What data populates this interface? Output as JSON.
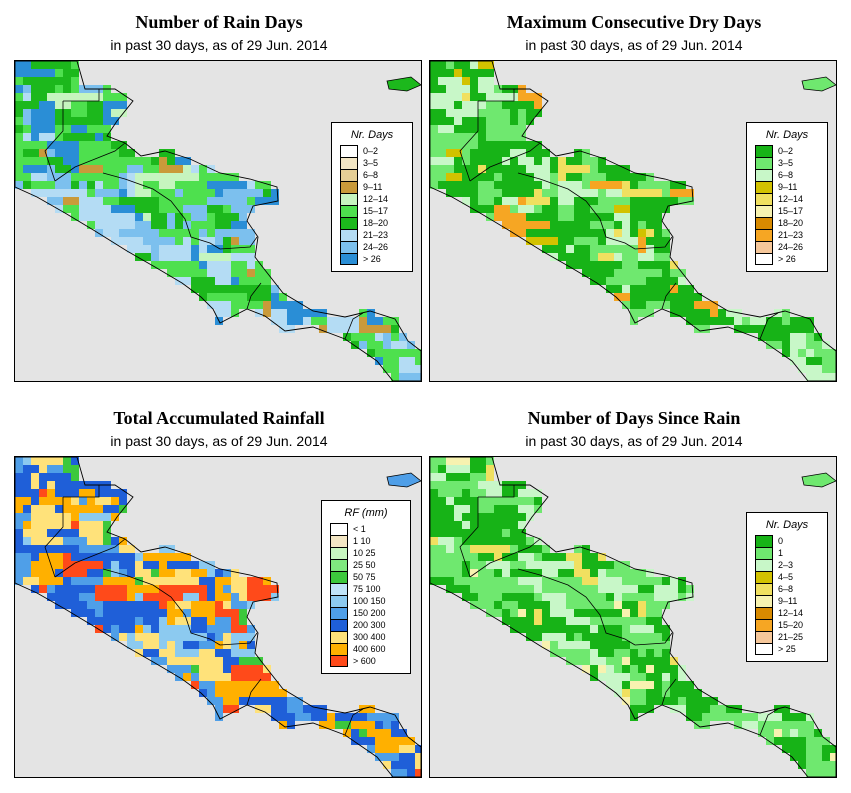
{
  "panels": [
    {
      "id": "rain-days",
      "title": "Number of Rain Days",
      "subtitle": "in past 30 days, as of  29 Jun. 2014",
      "legend": {
        "title": "Nr. Days",
        "items": [
          {
            "label": "0–2",
            "color": "#ffffff"
          },
          {
            "label": "3–5",
            "color": "#f3e6c4"
          },
          {
            "label": "6–8",
            "color": "#e6cf96"
          },
          {
            "label": "9–11",
            "color": "#c99a3a"
          },
          {
            "label": "12–14",
            "color": "#c6f5bf"
          },
          {
            "label": "15–17",
            "color": "#4ee04e"
          },
          {
            "label": "18–20",
            "color": "#1cb81c"
          },
          {
            "label": "21–23",
            "color": "#b4dcf4"
          },
          {
            "label": "24–26",
            "color": "#7cc0ee"
          },
          {
            "label": "> 26",
            "color": "#2a8ed6"
          }
        ]
      },
      "palette": [
        "#4ee04e",
        "#1cb81c",
        "#b4dcf4",
        "#7cc0ee",
        "#2a8ed6",
        "#c99a3a",
        "#c6f5bf"
      ],
      "weights": [
        30,
        22,
        18,
        14,
        10,
        3,
        3
      ]
    },
    {
      "id": "max-dry-days",
      "title": "Maximum Consecutive Dry Days",
      "subtitle": "in past 30 days, as of  29 Jun. 2014",
      "legend": {
        "title": "Nr. Days",
        "items": [
          {
            "label": "0–2",
            "color": "#17b317"
          },
          {
            "label": "3–5",
            "color": "#6fe86f"
          },
          {
            "label": "6–8",
            "color": "#c8f7c8"
          },
          {
            "label": "9–11",
            "color": "#d2c200"
          },
          {
            "label": "12–14",
            "color": "#f0e060"
          },
          {
            "label": "15–17",
            "color": "#f7f2b0"
          },
          {
            "label": "18–20",
            "color": "#d88a00"
          },
          {
            "label": "21–23",
            "color": "#f6a623"
          },
          {
            "label": "24–26",
            "color": "#f6c79a"
          },
          {
            "label": "> 26",
            "color": "#ffffff"
          }
        ]
      },
      "palette": [
        "#17b317",
        "#6fe86f",
        "#c8f7c8",
        "#f0e060",
        "#d2c200",
        "#f6a623"
      ],
      "weights": [
        48,
        30,
        12,
        4,
        3,
        3
      ]
    },
    {
      "id": "total-rainfall",
      "title": "Total Accumulated Rainfall",
      "subtitle": "in past 30 days, as of  29 Jun. 2014",
      "legend": {
        "title": "RF (mm)",
        "items": [
          {
            "label": "< 1",
            "color": "#ffffff"
          },
          {
            "label": "1   10",
            "color": "#f3e6c4"
          },
          {
            "label": "10   25",
            "color": "#c8f7c0"
          },
          {
            "label": "25   50",
            "color": "#7fe87f"
          },
          {
            "label": "50   75",
            "color": "#3cc83c"
          },
          {
            "label": "75   100",
            "color": "#bfe3f8"
          },
          {
            "label": "100   150",
            "color": "#8ccaf0"
          },
          {
            "label": "150   200",
            "color": "#4f9fe8"
          },
          {
            "label": "200   300",
            "color": "#1f5fd8"
          },
          {
            "label": "300   400",
            "color": "#ffe27a"
          },
          {
            "label": "400   600",
            "color": "#ffb000"
          },
          {
            "label": "> 600",
            "color": "#ff4a1a"
          }
        ]
      },
      "palette": [
        "#1f5fd8",
        "#4f9fe8",
        "#ffb000",
        "#ffe27a",
        "#ff4a1a",
        "#8ccaf0",
        "#3cc83c"
      ],
      "weights": [
        24,
        18,
        22,
        14,
        8,
        10,
        4
      ]
    },
    {
      "id": "days-since-rain",
      "title": "Number of Days Since Rain",
      "subtitle": "in past 30 days, as of  29 Jun. 2014",
      "legend": {
        "title": "Nr. Days",
        "items": [
          {
            "label": "0",
            "color": "#17b317"
          },
          {
            "label": "1",
            "color": "#6fe86f"
          },
          {
            "label": "2–3",
            "color": "#c8f7c8"
          },
          {
            "label": "4–5",
            "color": "#d2c200"
          },
          {
            "label": "6–8",
            "color": "#f0e060"
          },
          {
            "label": "9–11",
            "color": "#f7f2b0"
          },
          {
            "label": "12–14",
            "color": "#d88a00"
          },
          {
            "label": "15–20",
            "color": "#f6a623"
          },
          {
            "label": "21–25",
            "color": "#f6c79a"
          },
          {
            "label": "> 25",
            "color": "#ffffff"
          }
        ]
      },
      "palette": [
        "#17b317",
        "#6fe86f",
        "#c8f7c8",
        "#f7f2b0",
        "#f0e060"
      ],
      "weights": [
        40,
        34,
        14,
        7,
        5
      ]
    }
  ]
}
